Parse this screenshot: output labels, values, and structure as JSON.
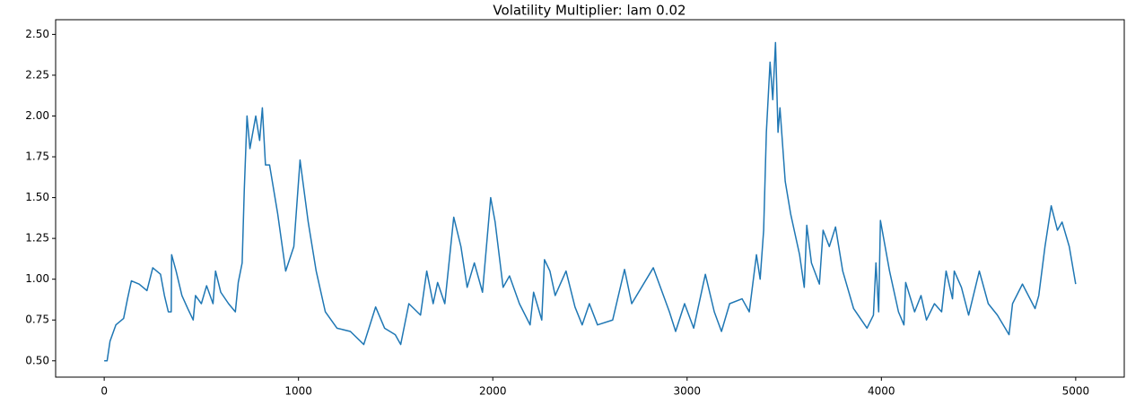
{
  "chart_data": {
    "type": "line",
    "title": "Volatility Multiplier: lam 0.02",
    "x": [
      0,
      15,
      30,
      60,
      100,
      120,
      140,
      180,
      220,
      250,
      290,
      310,
      330,
      345,
      347,
      370,
      400,
      430,
      458,
      470,
      500,
      527,
      560,
      573,
      600,
      640,
      675,
      690,
      710,
      721,
      735,
      750,
      780,
      800,
      814,
      830,
      851,
      893,
      934,
      976,
      1008,
      1050,
      1091,
      1138,
      1198,
      1267,
      1336,
      1397,
      1443,
      1498,
      1526,
      1568,
      1628,
      1660,
      1693,
      1716,
      1753,
      1799,
      1836,
      1868,
      1905,
      1947,
      1989,
      2012,
      2053,
      2086,
      2137,
      2192,
      2210,
      2252,
      2266,
      2294,
      2321,
      2377,
      2423,
      2460,
      2497,
      2539,
      2617,
      2678,
      2715,
      2826,
      2909,
      2941,
      2987,
      3034,
      3094,
      3140,
      3177,
      3219,
      3283,
      3320,
      3357,
      3376,
      3394,
      3408,
      3427,
      3441,
      3455,
      3468,
      3478,
      3505,
      3533,
      3579,
      3603,
      3616,
      3640,
      3681,
      3700,
      3732,
      3764,
      3801,
      3857,
      3926,
      3959,
      3972,
      3986,
      3995,
      4042,
      4088,
      4116,
      4125,
      4171,
      4204,
      4232,
      4273,
      4310,
      4333,
      4366,
      4375,
      4412,
      4449,
      4504,
      4550,
      4597,
      4657,
      4675,
      4726,
      4791,
      4810,
      4842,
      4874,
      4906,
      4930,
      4967,
      5000
    ],
    "values": [
      0.5,
      0.5,
      0.62,
      0.72,
      0.76,
      0.88,
      0.99,
      0.97,
      0.93,
      1.07,
      1.03,
      0.9,
      0.8,
      0.8,
      1.15,
      1.05,
      0.9,
      0.82,
      0.75,
      0.9,
      0.85,
      0.96,
      0.85,
      1.05,
      0.92,
      0.85,
      0.8,
      0.98,
      1.1,
      1.55,
      2.0,
      1.8,
      2.0,
      1.85,
      2.05,
      1.7,
      1.7,
      1.4,
      1.05,
      1.2,
      1.73,
      1.35,
      1.05,
      0.8,
      0.7,
      0.68,
      0.6,
      0.83,
      0.7,
      0.66,
      0.6,
      0.85,
      0.78,
      1.05,
      0.85,
      0.98,
      0.85,
      1.38,
      1.2,
      0.95,
      1.1,
      0.92,
      1.5,
      1.35,
      0.95,
      1.02,
      0.85,
      0.72,
      0.92,
      0.75,
      1.12,
      1.05,
      0.9,
      1.05,
      0.83,
      0.72,
      0.85,
      0.72,
      0.75,
      1.06,
      0.85,
      1.07,
      0.8,
      0.68,
      0.85,
      0.7,
      1.03,
      0.8,
      0.68,
      0.85,
      0.88,
      0.8,
      1.15,
      1.0,
      1.3,
      1.9,
      2.33,
      2.1,
      2.45,
      1.9,
      2.05,
      1.6,
      1.4,
      1.15,
      0.95,
      1.33,
      1.1,
      0.97,
      1.3,
      1.2,
      1.32,
      1.05,
      0.82,
      0.7,
      0.78,
      1.1,
      0.8,
      1.36,
      1.05,
      0.8,
      0.72,
      0.98,
      0.8,
      0.9,
      0.75,
      0.85,
      0.8,
      1.05,
      0.88,
      1.05,
      0.95,
      0.78,
      1.05,
      0.85,
      0.78,
      0.66,
      0.85,
      0.97,
      0.82,
      0.9,
      1.2,
      1.45,
      1.3,
      1.35,
      1.2,
      0.97
    ],
    "color": "#1f77b4",
    "xlim": [
      -250,
      5250
    ],
    "xticks": [
      0,
      1000,
      2000,
      3000,
      4000,
      5000
    ],
    "ylim": [
      0.4,
      2.59
    ],
    "yticks": [
      {
        "value": 0.5,
        "label": "0.50"
      },
      0.75,
      {
        "value": 1.0,
        "label": "1.00"
      },
      1.25,
      {
        "value": 1.5,
        "label": "1.50"
      },
      1.75,
      {
        "value": 2.0,
        "label": "2.00"
      },
      2.25,
      {
        "value": 2.5,
        "label": "2.50"
      }
    ]
  }
}
